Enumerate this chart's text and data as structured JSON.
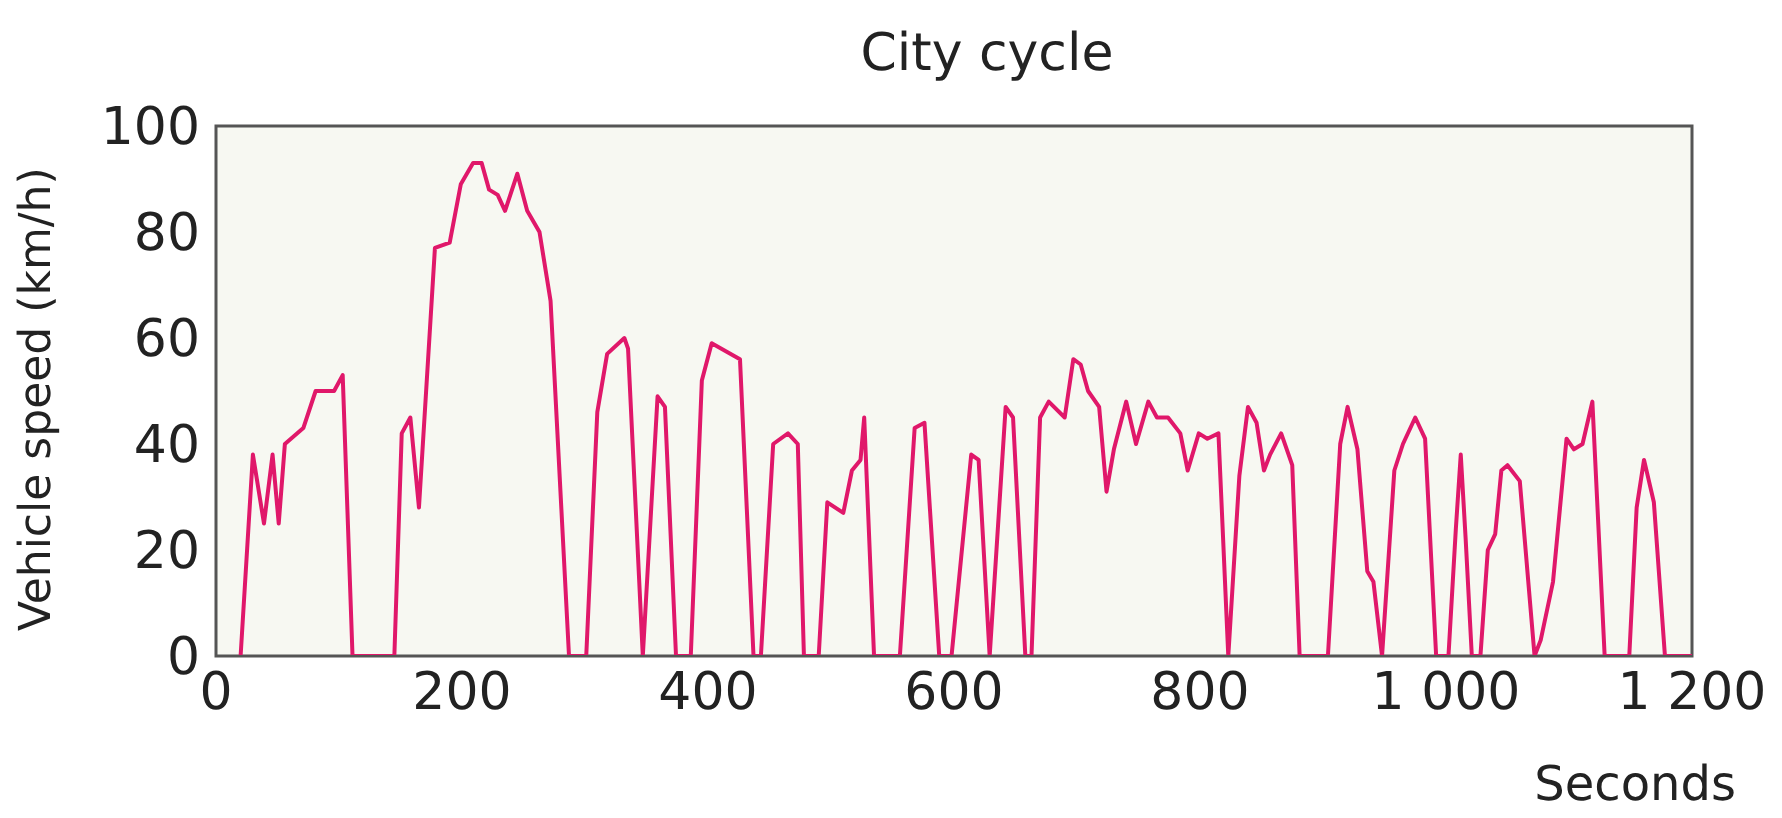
{
  "chart_data": {
    "type": "line",
    "title": "City cycle",
    "xlabel": "Seconds",
    "ylabel": "Vehicle speed (km/h)",
    "xlim": [
      0,
      1200
    ],
    "xticks": [
      0,
      200,
      400,
      600,
      800,
      {
        "value": 1000,
        "label": "1 000"
      },
      {
        "value": 1200,
        "label": "1 200"
      }
    ],
    "ylim": [
      0,
      100
    ],
    "yticks": [
      0,
      20,
      40,
      60,
      80,
      100
    ],
    "marker": "none",
    "line_style": "solid",
    "series": [
      {
        "color": "#e0186a",
        "x": [
          20,
          30,
          39,
          46,
          51,
          56,
          71,
          81,
          96,
          103,
          111,
          145,
          151,
          158,
          165,
          178,
          190,
          199,
          209,
          216,
          222,
          229,
          235,
          245,
          253,
          263,
          272,
          287,
          301,
          310,
          318,
          332,
          335,
          347,
          359,
          365,
          374,
          386,
          395,
          403,
          426,
          437,
          443,
          453,
          465,
          473,
          478,
          490,
          497,
          510,
          517,
          524,
          527,
          535,
          556,
          568,
          576,
          588,
          598,
          614,
          620,
          629,
          642,
          648,
          658,
          663,
          670,
          677,
          690,
          697,
          703,
          709,
          718,
          724,
          730,
          740,
          748,
          758,
          765,
          774,
          784,
          790,
          799,
          806,
          815,
          823,
          832,
          839,
          846,
          852,
          857,
          866,
          875,
          881,
          904,
          914,
          920,
          928,
          936,
          941,
          948,
          958,
          965,
          975,
          983,
          992,
          1002,
          1008,
          1012,
          1016,
          1021,
          1028,
          1034,
          1040,
          1045,
          1050,
          1060,
          1072,
          1077,
          1087,
          1098,
          1104,
          1111,
          1119,
          1129,
          1149,
          1155,
          1161,
          1169,
          1178,
          1200
        ],
        "values": [
          0,
          38,
          25,
          38,
          25,
          40,
          43,
          50,
          50,
          53,
          0,
          0,
          42,
          45,
          28,
          77,
          78,
          89,
          93,
          93,
          88,
          87,
          84,
          91,
          84,
          80,
          67,
          0,
          0,
          46,
          57,
          60,
          58,
          0,
          49,
          47,
          0,
          0,
          52,
          59,
          56,
          0,
          0,
          40,
          42,
          40,
          0,
          0,
          29,
          27,
          35,
          37,
          45,
          0,
          0,
          43,
          44,
          0,
          0,
          38,
          37,
          0,
          47,
          45,
          0,
          0,
          45,
          48,
          45,
          56,
          55,
          50,
          47,
          31,
          39,
          48,
          40,
          48,
          45,
          45,
          42,
          35,
          42,
          41,
          42,
          0,
          34,
          47,
          44,
          35,
          38,
          42,
          36,
          0,
          0,
          40,
          47,
          39,
          16,
          14,
          0,
          35,
          40,
          45,
          41,
          0,
          0,
          24,
          38,
          22,
          0,
          0,
          20,
          23,
          35,
          36,
          33,
          0,
          3,
          14,
          41,
          39,
          40,
          48,
          0,
          0,
          28,
          37,
          29,
          0,
          0
        ]
      }
    ]
  }
}
